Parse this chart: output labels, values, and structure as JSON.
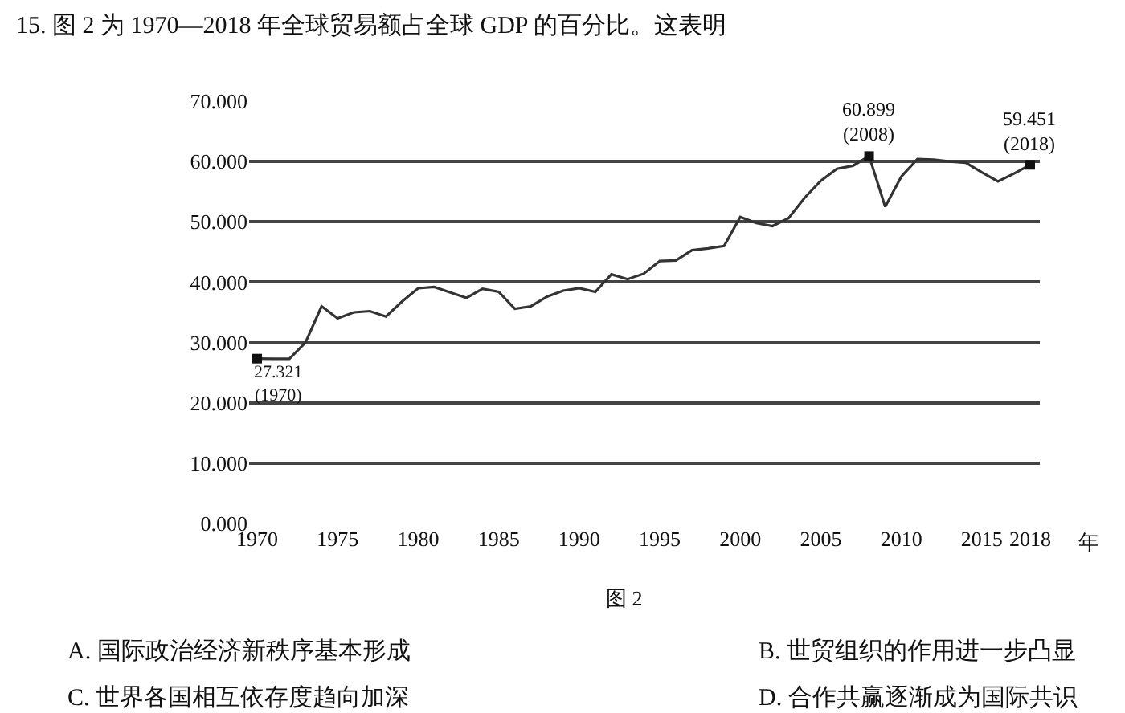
{
  "chart_data": {
    "type": "line",
    "title": "15. 图 2 为 1970—2018 年全球贸易额占全球 GDP 的百分比。这表明",
    "xlabel": "年",
    "x": [
      1970,
      1971,
      1972,
      1973,
      1974,
      1975,
      1976,
      1977,
      1978,
      1979,
      1980,
      1981,
      1982,
      1983,
      1984,
      1985,
      1986,
      1987,
      1988,
      1989,
      1990,
      1991,
      1992,
      1993,
      1994,
      1995,
      1996,
      1997,
      1998,
      1999,
      2000,
      2001,
      2002,
      2003,
      2004,
      2005,
      2006,
      2007,
      2008,
      2009,
      2010,
      2011,
      2012,
      2013,
      2014,
      2015,
      2016,
      2017,
      2018
    ],
    "series": [
      {
        "type": "line",
        "color": "#333333",
        "marker": "none",
        "values": [
          27.321,
          27.3,
          27.3,
          30,
          36,
          34,
          35,
          35.2,
          34.3,
          36.8,
          39,
          39.2,
          38.3,
          37.4,
          38.9,
          38.4,
          35.6,
          36,
          37.6,
          38.6,
          39,
          38.4,
          41.3,
          40.5,
          41.4,
          43.5,
          43.6,
          45.3,
          45.6,
          46,
          50.8,
          49.8,
          49.3,
          50.6,
          54,
          56.8,
          58.8,
          59.3,
          60.899,
          52.5,
          57.5,
          60.4,
          60.3,
          60,
          59.8,
          58.2,
          56.7,
          58,
          59.451
        ]
      },
      {
        "type": "scatter",
        "color": "#111111",
        "marker": "square",
        "x": [
          1970,
          2008,
          2018
        ],
        "values": [
          27.321,
          60.899,
          59.451
        ]
      }
    ],
    "xlim": [
      1969.5,
      2018.6
    ],
    "xticks": [
      1970,
      1975,
      1980,
      1985,
      1990,
      1995,
      2000,
      2005,
      2010,
      2015,
      2018
    ],
    "ylim": [
      0,
      70
    ],
    "yticks": [
      {
        "value": 0,
        "label": "0.000"
      },
      {
        "value": 10,
        "label": "10.000"
      },
      {
        "value": 20,
        "label": "20.000"
      },
      {
        "value": 30,
        "label": "30.000"
      },
      {
        "value": 40,
        "label": "40.000"
      },
      {
        "value": 50,
        "label": "50.000"
      },
      {
        "value": 60,
        "label": "60.000"
      },
      {
        "value": 70,
        "label": "70.000"
      }
    ],
    "grid": "y",
    "line_style": "solid",
    "annotations": [
      {
        "text": "27.321\n(1970)",
        "x": 1970,
        "y": 27.321
      },
      {
        "text": "60.899\n(2008)",
        "x": 2008,
        "y": 60.899
      },
      {
        "text": "59.451\n(2018)",
        "x": 2018,
        "y": 59.451
      },
      "图 2",
      "A. 国际政治经济新秩序基本形成",
      "B. 世贸组织的作用进一步凸显",
      "C. 世界各国相互依存度趋向加深",
      "D. 合作共赢逐渐成为国际共识"
    ]
  }
}
